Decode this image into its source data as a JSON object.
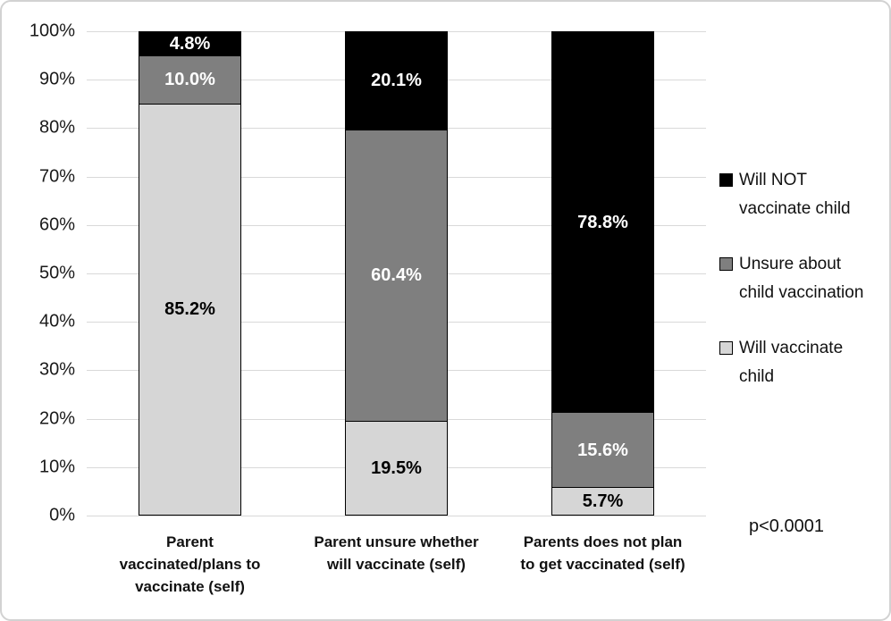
{
  "frame": {
    "background_color": "#ffffff",
    "border_color": "#d2d2d2"
  },
  "chart_data": {
    "type": "bar",
    "stacked": true,
    "percent_scale": true,
    "title": "",
    "xlabel": "",
    "ylabel": "",
    "categories": [
      "Parent vaccinated/plans to vaccinate (self)",
      "Parent unsure whether will vaccinate (self)",
      "Parents does not plan to get vaccinated (self)"
    ],
    "category_label_lines": [
      [
        "Parent",
        "vaccinated/plans to",
        "vaccinate (self)"
      ],
      [
        "Parent unsure whether",
        "will vaccinate (self)"
      ],
      [
        "Parents does not plan",
        "to get vaccinated (self)"
      ]
    ],
    "series": [
      {
        "name": "Will NOT vaccinate child",
        "color": "#000000",
        "label_color": "#ffffff",
        "values": [
          4.8,
          20.1,
          78.8
        ]
      },
      {
        "name": "Unsure about child vaccination",
        "color": "#7f7f7f",
        "label_color": "#ffffff",
        "values": [
          10.0,
          60.4,
          15.6
        ]
      },
      {
        "name": "Will vaccinate child",
        "color": "#d6d6d6",
        "label_color": "#000000",
        "values": [
          85.2,
          19.5,
          5.7
        ]
      }
    ],
    "value_suffix": "%",
    "value_decimals": 1,
    "y_axis": {
      "min": 0,
      "max": 100,
      "step": 10,
      "ticks": [
        "0%",
        "10%",
        "20%",
        "30%",
        "40%",
        "50%",
        "60%",
        "70%",
        "80%",
        "90%",
        "100%"
      ]
    },
    "gridlines": true,
    "gridline_color": "#d9d9d9",
    "bar_border_color": "#000000",
    "legend": {
      "position": "right",
      "items": [
        {
          "label": "Will NOT vaccinate child",
          "label_lines": [
            "Will NOT",
            "vaccinate child"
          ],
          "color": "#000000"
        },
        {
          "label": "Unsure about child vaccination",
          "label_lines": [
            "Unsure about",
            "child vaccination"
          ],
          "color": "#7f7f7f"
        },
        {
          "label": "Will vaccinate child",
          "label_lines": [
            "Will vaccinate",
            "child"
          ],
          "color": "#d6d6d6"
        }
      ]
    },
    "annotation": "p<0.0001"
  }
}
